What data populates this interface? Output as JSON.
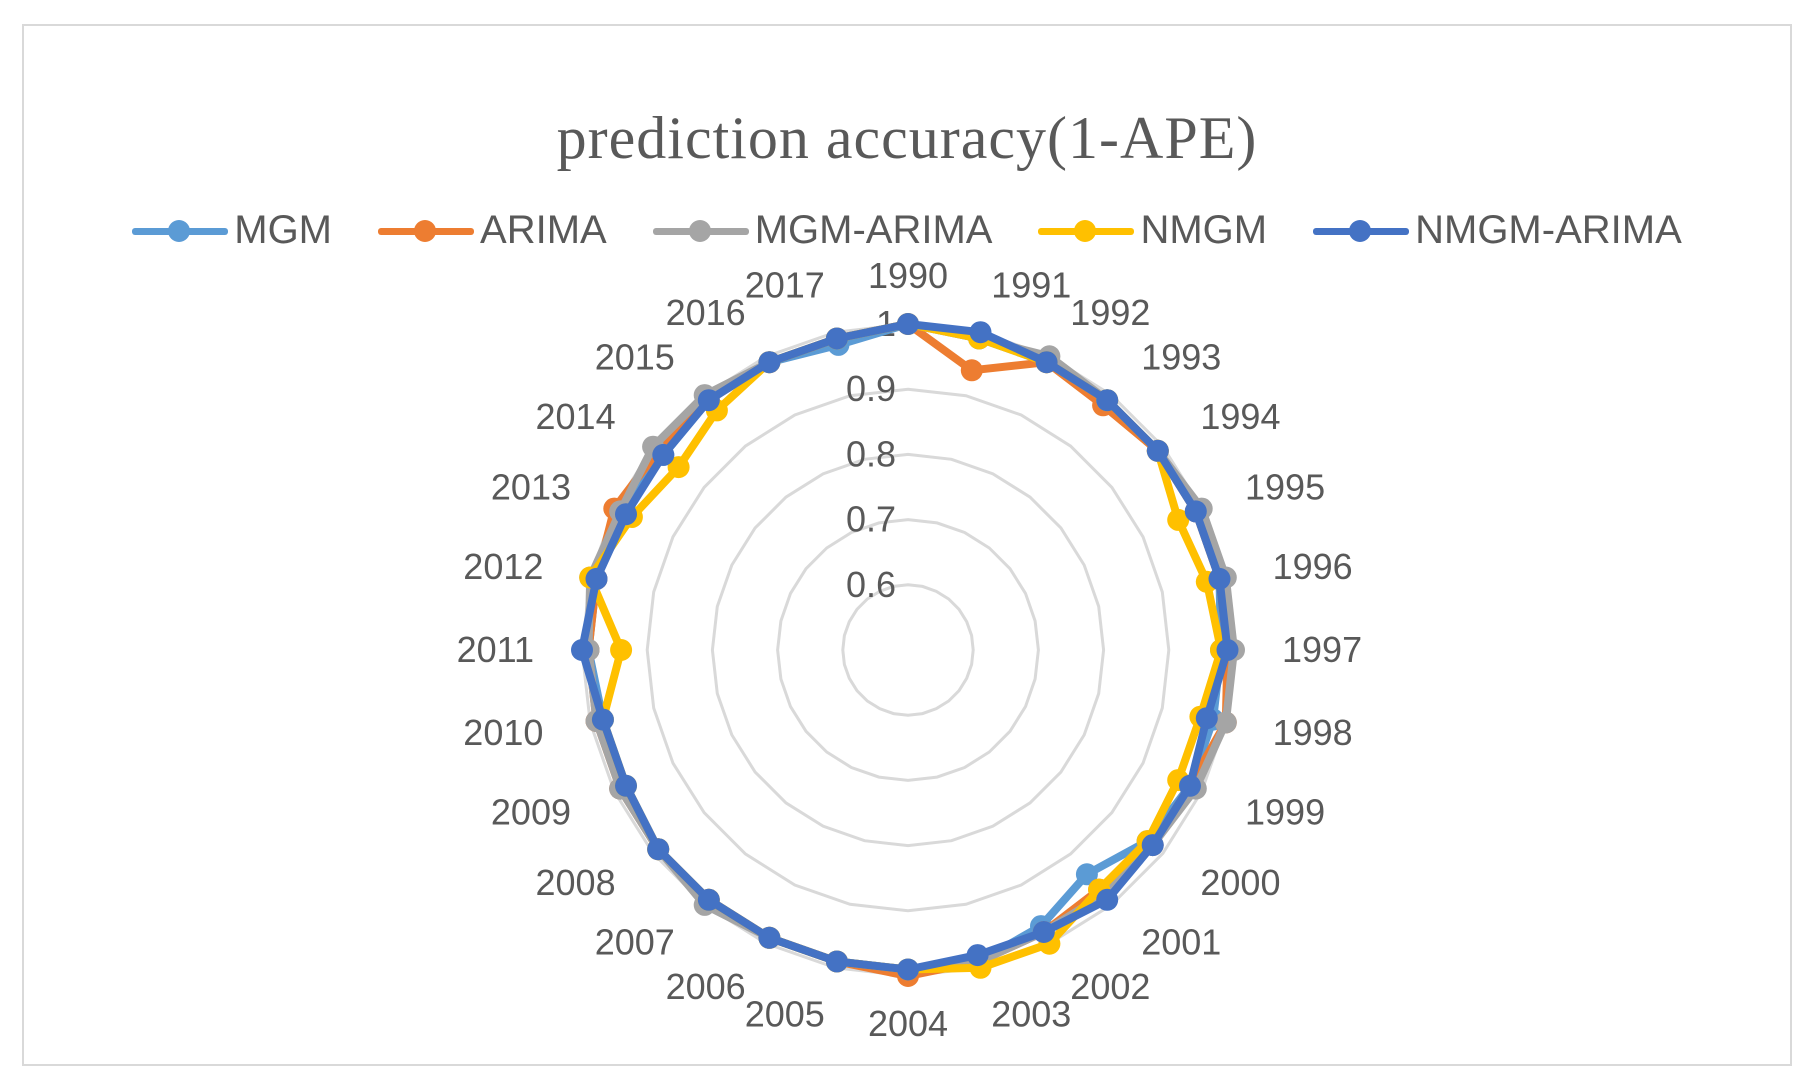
{
  "chart_data": {
    "type": "radar",
    "title": "prediction  accuracy(1-APE)",
    "categories": [
      "1990",
      "1991",
      "1992",
      "1993",
      "1994",
      "1995",
      "1996",
      "1997",
      "1998",
      "1999",
      "2000",
      "2001",
      "2002",
      "2003",
      "2004",
      "2005",
      "2006",
      "2007",
      "2008",
      "2009",
      "2010",
      "2011",
      "2012",
      "2013",
      "2014",
      "2015",
      "2016",
      "2017"
    ],
    "rlim": [
      0.5,
      1
    ],
    "ticks": [
      {
        "value": 0.6,
        "label": "0.6"
      },
      {
        "value": 0.7,
        "label": "0.7"
      },
      {
        "value": 0.8,
        "label": "0.8"
      },
      {
        "value": 0.9,
        "label": "0.9"
      },
      {
        "value": 1.0,
        "label": "1"
      }
    ],
    "legend_position": "top",
    "series": [
      {
        "name": "MGM",
        "color": "#5b9bd5",
        "values": [
          1.0,
          0.99,
          0.99,
          0.99,
          0.99,
          0.99,
          0.99,
          0.98,
          0.98,
          0.98,
          0.97,
          0.94,
          0.97,
          0.99,
          0.99,
          0.99,
          0.99,
          0.99,
          0.99,
          0.99,
          0.98,
          0.99,
          0.99,
          0.99,
          0.98,
          0.99,
          0.99,
          0.98
        ]
      },
      {
        "name": "ARIMA",
        "color": "#ed7d31",
        "values": [
          1.0,
          0.94,
          0.99,
          0.98,
          0.99,
          0.99,
          0.99,
          0.99,
          1.0,
          0.98,
          0.98,
          0.97,
          0.98,
          0.99,
          1.0,
          0.99,
          0.99,
          0.99,
          0.99,
          0.99,
          0.99,
          0.99,
          0.99,
          1.0,
          0.99,
          0.99,
          0.99,
          0.99
        ]
      },
      {
        "name": "MGM-ARIMA",
        "color": "#a5a5a5",
        "values": [
          1.0,
          0.99,
          1.0,
          0.99,
          0.99,
          1.0,
          1.0,
          1.0,
          1.0,
          0.99,
          0.98,
          0.98,
          0.98,
          0.99,
          0.99,
          0.99,
          0.99,
          1.0,
          0.99,
          0.99,
          0.99,
          0.99,
          1.0,
          0.99,
          1.0,
          1.0,
          0.99,
          0.99
        ]
      },
      {
        "name": "NMGM",
        "color": "#ffc000",
        "values": [
          1.0,
          0.99,
          0.99,
          0.99,
          0.99,
          0.96,
          0.97,
          0.98,
          0.96,
          0.96,
          0.97,
          0.97,
          1.0,
          1.0,
          0.99,
          0.99,
          0.99,
          0.99,
          0.99,
          0.98,
          0.98,
          0.94,
          1.0,
          0.97,
          0.95,
          0.97,
          0.99,
          0.99
        ]
      },
      {
        "name": "NMGM-ARIMA",
        "color": "#4472c4",
        "values": [
          1.0,
          1.0,
          0.99,
          0.99,
          0.99,
          0.99,
          0.99,
          0.99,
          0.97,
          0.98,
          0.98,
          0.99,
          0.98,
          0.98,
          0.99,
          0.99,
          0.99,
          0.99,
          0.99,
          0.98,
          0.98,
          1.0,
          0.99,
          0.98,
          0.98,
          0.99,
          0.99,
          0.99
        ]
      }
    ]
  }
}
